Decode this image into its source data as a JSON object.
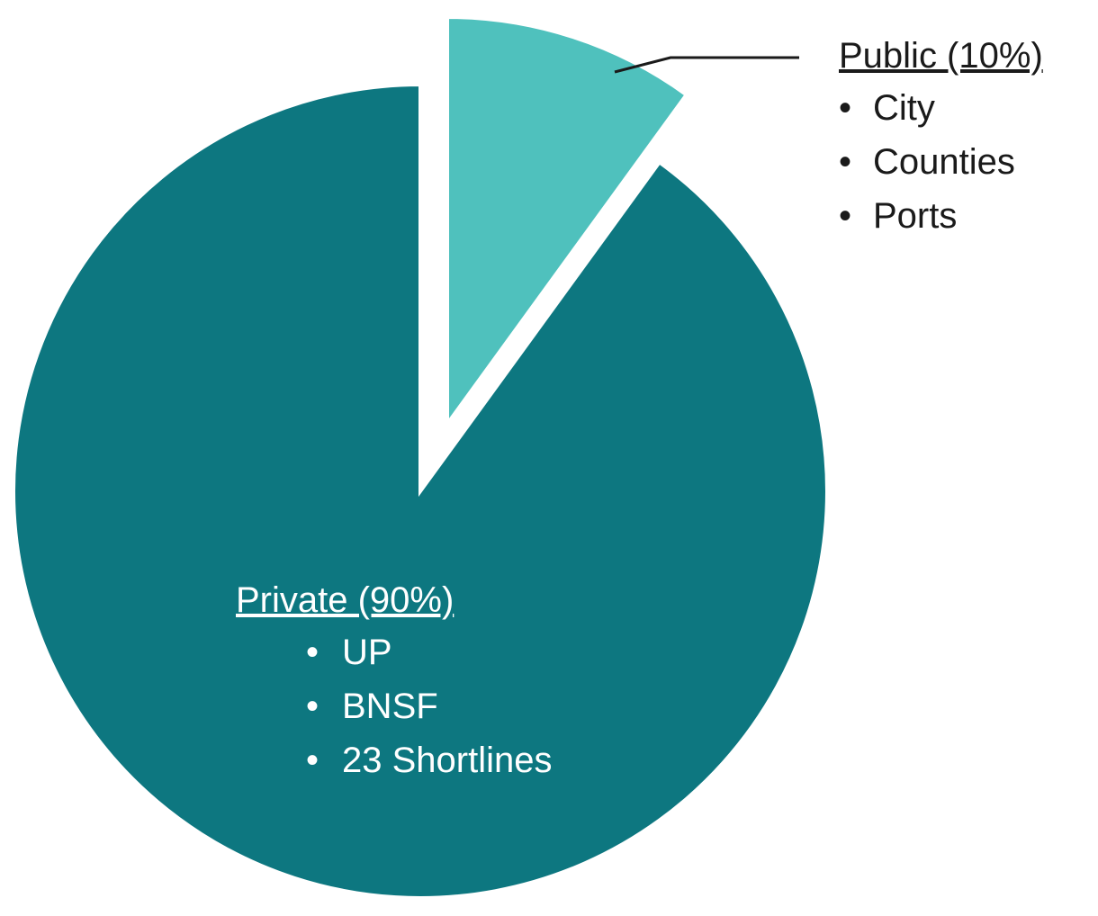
{
  "chart_data": {
    "type": "pie",
    "title": "",
    "slices": [
      {
        "label": "Private (90%)",
        "value": 90,
        "color": "#0d7780",
        "items": [
          "UP",
          "BNSF",
          "23 Shortlines"
        ]
      },
      {
        "label": "Public (10%)",
        "value": 10,
        "color": "#4fc1bd",
        "items": [
          "City",
          "Counties",
          "Ports"
        ]
      }
    ],
    "exploded_slice": "Public (10%)",
    "label_text_colors": {
      "Private (90%)": "#ffffff",
      "Public (10%)": "#1a1a1a"
    }
  }
}
